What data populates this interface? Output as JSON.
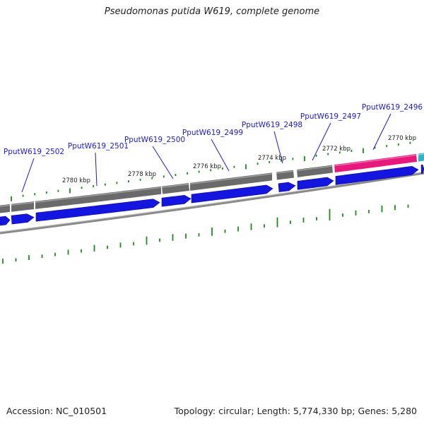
{
  "title": "Pseudomonas putida W619, complete genome",
  "footer": {
    "accession": "Accession: NC_010501",
    "summary": "Topology: circular; Length: 5,774,330 bp; Genes: 5,280"
  },
  "colors": {
    "cds_forward": "#1515e0",
    "gene_track": "#6a6a6a",
    "highlight_gene": "#e8197d",
    "label": "#1a1acc",
    "tick": "#1b8a1b",
    "backbone": "#8a8a8a"
  },
  "chart_data": {
    "type": "genome_map",
    "ticks": [
      "2780 kbp",
      "2778 kbp",
      "2776 kbp",
      "2774 kbp",
      "2772 kbp",
      "2770 kbp"
    ],
    "genes": [
      {
        "label": "PputW619_2502"
      },
      {
        "label": "PputW619_2501"
      },
      {
        "label": "PputW619_2500"
      },
      {
        "label": "PputW619_2499"
      },
      {
        "label": "PputW619_2498"
      },
      {
        "label": "PputW619_2497"
      },
      {
        "label": "PputW619_2496"
      }
    ]
  }
}
